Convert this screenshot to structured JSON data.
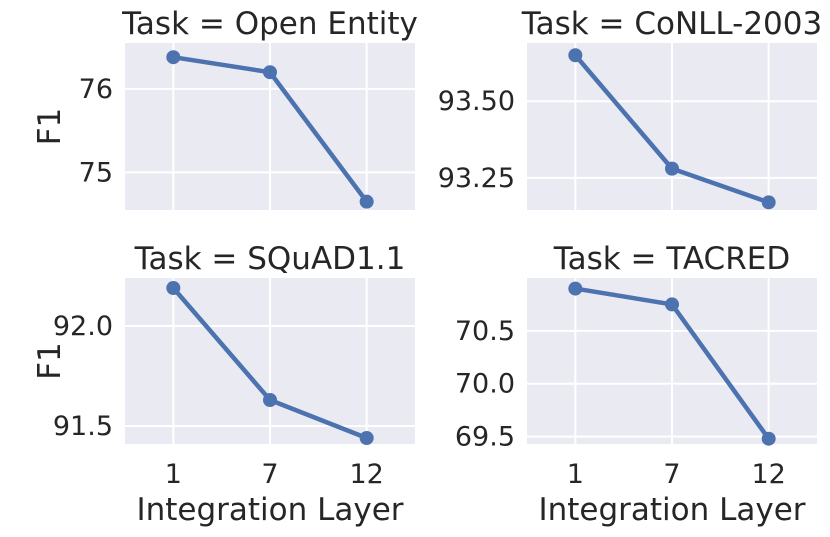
{
  "chart_data": [
    {
      "type": "line",
      "title": "Task = Open Entity",
      "xlabel": "",
      "ylabel": "F1",
      "categories": [
        "1",
        "7",
        "12"
      ],
      "values": [
        76.38,
        76.2,
        74.65
      ],
      "y_ticks": [
        "75",
        "76"
      ],
      "ylim": [
        74.55,
        76.55
      ],
      "grid": true
    },
    {
      "type": "line",
      "title": "Task = CoNLL-2003",
      "xlabel": "",
      "ylabel": "",
      "categories": [
        "1",
        "7",
        "12"
      ],
      "values": [
        93.65,
        93.28,
        93.17
      ],
      "y_ticks": [
        "93.25",
        "93.50"
      ],
      "ylim": [
        93.145,
        93.69
      ],
      "grid": true
    },
    {
      "type": "line",
      "title": "Task = SQuAD1.1",
      "xlabel": "Integration Layer",
      "ylabel": "F1",
      "categories": [
        "1",
        "7",
        "12"
      ],
      "values": [
        92.19,
        91.63,
        91.44
      ],
      "y_ticks": [
        "91.5",
        "92.0"
      ],
      "ylim": [
        91.41,
        92.24
      ],
      "grid": true
    },
    {
      "type": "line",
      "title": "Task = TACRED",
      "xlabel": "Integration Layer",
      "ylabel": "",
      "categories": [
        "1",
        "7",
        "12"
      ],
      "values": [
        70.9,
        70.75,
        69.48
      ],
      "y_ticks": [
        "69.5",
        "70.0",
        "70.5"
      ],
      "ylim": [
        69.43,
        71.0
      ],
      "grid": true
    }
  ],
  "colors": {
    "line": "#4c72b0",
    "panel": "#eaeaf2",
    "grid": "#ffffff",
    "text": "#262626"
  }
}
